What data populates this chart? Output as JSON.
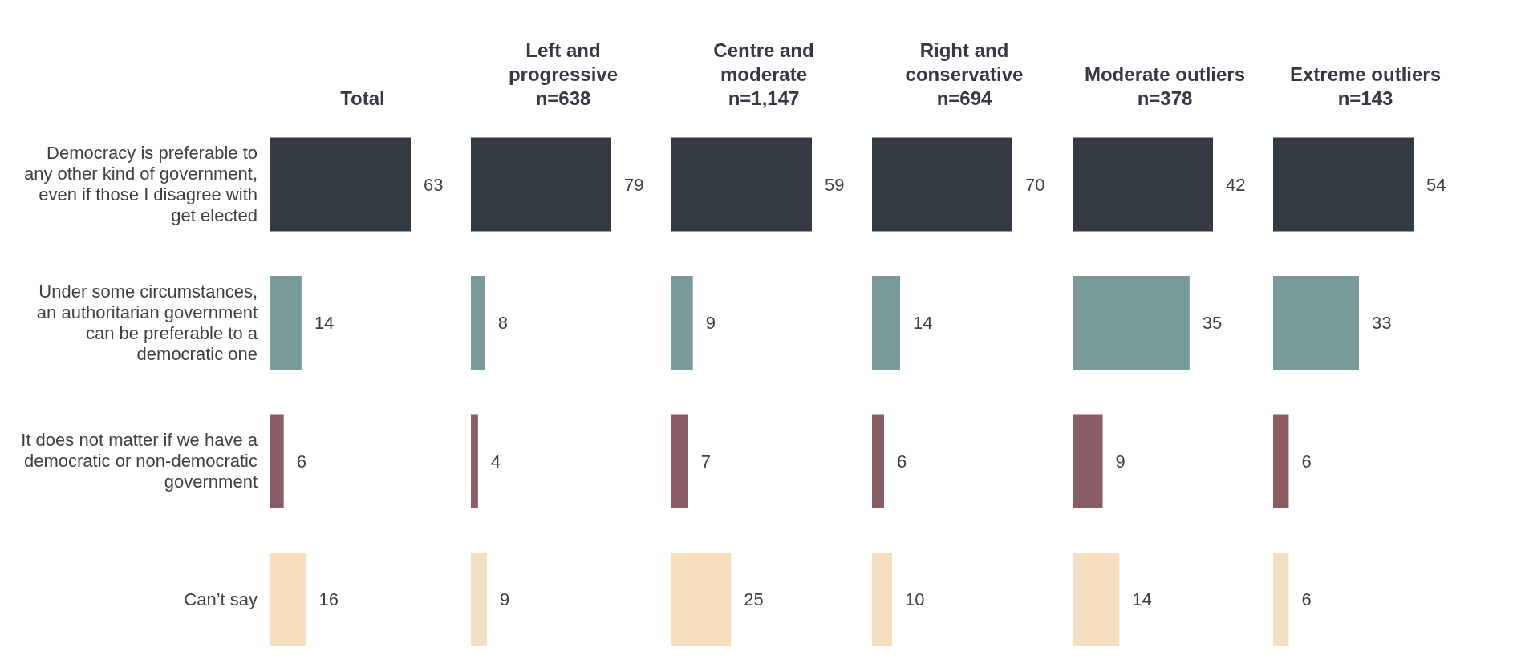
{
  "chart_data": [
    {
      "type": "bar",
      "orientation": "horizontal",
      "title": "Total",
      "categories": [
        "Democracy is preferable to any other kind of government, even if those I disagree with get elected",
        "Under some circumstances, an authoritarian government can be preferable to a democratic one",
        "It does not matter if we have a democratic or non-democratic government",
        "Can’t say"
      ],
      "values": [
        63,
        14,
        6,
        16
      ],
      "colors": [
        "#343a42",
        "#789a98",
        "#8a5c66",
        "#f5dfc0"
      ],
      "data_labels": true,
      "tick_labels": "y"
    },
    {
      "type": "bar",
      "orientation": "horizontal",
      "title": "Left and progressive",
      "subtitle": "n=638",
      "categories": [
        null,
        null,
        null,
        null
      ],
      "values": [
        79,
        8,
        4,
        9
      ],
      "colors": [
        "#343a42",
        "#789a98",
        "#8a5c66",
        "#f5dfc0"
      ],
      "data_labels": true,
      "tick_labels": false
    },
    {
      "type": "bar",
      "orientation": "horizontal",
      "title": "Centre and moderate",
      "subtitle": "n=1,147",
      "categories": [
        null,
        null,
        null,
        null
      ],
      "values": [
        59,
        9,
        7,
        25
      ],
      "colors": [
        "#343a42",
        "#789a98",
        "#8a5c66",
        "#f5dfc0"
      ],
      "data_labels": true,
      "tick_labels": false
    },
    {
      "type": "bar",
      "orientation": "horizontal",
      "title": "Right and conservative",
      "subtitle": "n=694",
      "categories": [
        null,
        null,
        null,
        null
      ],
      "values": [
        70,
        14,
        6,
        10
      ],
      "colors": [
        "#343a42",
        "#789a98",
        "#8a5c66",
        "#f5dfc0"
      ],
      "data_labels": true,
      "tick_labels": false
    },
    {
      "type": "bar",
      "orientation": "horizontal",
      "title": "Moderate outliers",
      "subtitle": "n=378",
      "categories": [
        null,
        null,
        null,
        null
      ],
      "values": [
        42,
        35,
        9,
        14
      ],
      "colors": [
        "#343a42",
        "#789a98",
        "#8a5c66",
        "#f5dfc0"
      ],
      "data_labels": true,
      "tick_labels": false
    },
    {
      "type": "bar",
      "orientation": "horizontal",
      "title": "Extreme outliers",
      "subtitle": "n=143",
      "categories": [
        null,
        null,
        null,
        null
      ],
      "values": [
        54,
        33,
        6,
        6
      ],
      "colors": [
        "#343a42",
        "#789a98",
        "#8a5c66",
        "#f5dfc0"
      ],
      "data_labels": true,
      "tick_labels": false
    }
  ]
}
